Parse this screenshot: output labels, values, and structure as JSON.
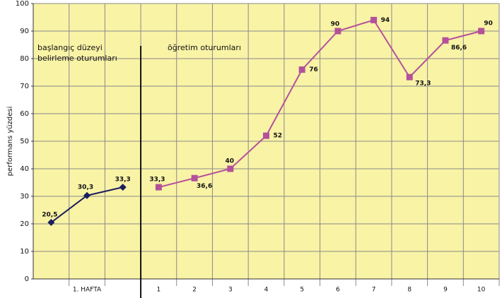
{
  "chart_data": {
    "type": "line",
    "y_label": "performans yüzdesi",
    "annotations": [
      "başlangıç düzeyi",
      "belirleme oturumları",
      "öğretim oturumları"
    ],
    "categories": [
      null,
      "1. HAFTA",
      null,
      "1",
      "2",
      "3",
      "4",
      "5",
      "6",
      "7",
      "8",
      "9",
      "10"
    ],
    "series": [
      {
        "color": "#1b1f5c",
        "marker": "diamond",
        "values": [
          20.5,
          30.3,
          33.3,
          null,
          null,
          null,
          null,
          null,
          null,
          null,
          null,
          null,
          null
        ],
        "value_labels": [
          "20,5",
          "30,3",
          "33,3",
          null,
          null,
          null,
          null,
          null,
          null,
          null,
          null,
          null,
          null
        ]
      },
      {
        "color": "#b4519a",
        "marker": "square",
        "values": [
          null,
          null,
          null,
          33.3,
          36.6,
          40,
          52,
          76,
          90,
          94,
          73.3,
          86.6,
          90
        ],
        "value_labels": [
          null,
          null,
          null,
          "33,3",
          "36,6",
          "40",
          "52",
          "76",
          "90",
          "94",
          "73,3",
          "86,6",
          "90"
        ]
      }
    ],
    "ylim": [
      0,
      100
    ],
    "yticks": [
      0,
      10,
      20,
      30,
      40,
      50,
      60,
      70,
      80,
      90,
      100
    ],
    "grid": true,
    "background": "#f9f3a6"
  }
}
